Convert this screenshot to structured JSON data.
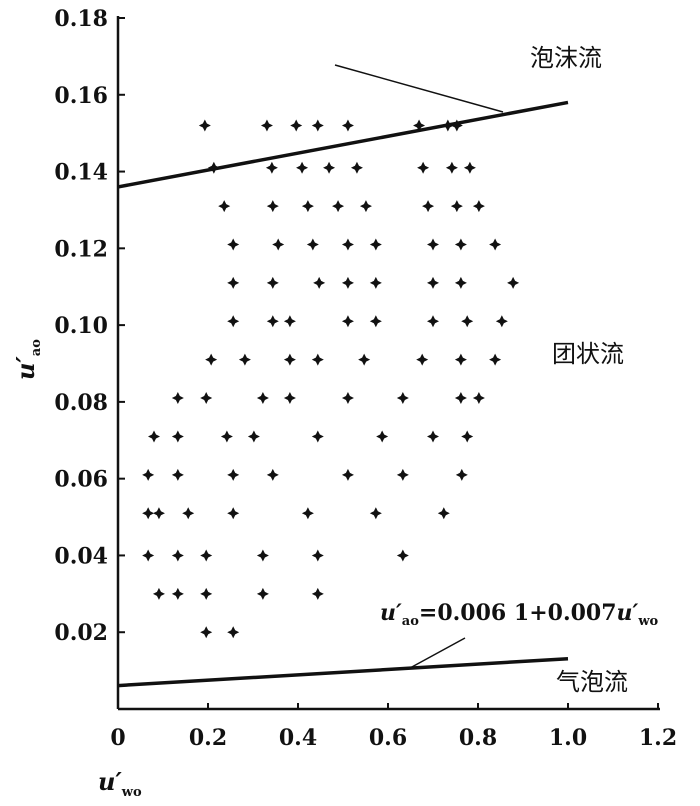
{
  "chart_data": {
    "type": "scatter",
    "xlabel": {
      "main": "u′",
      "sub": "wo"
    },
    "ylabel": {
      "main": "u′",
      "sub": "ao"
    },
    "xlim": [
      0,
      1.2
    ],
    "ylim": [
      0,
      0.18
    ],
    "xticks": [
      "0",
      "0.2",
      "0.4",
      "0.6",
      "0.8",
      "1.0",
      "1.2"
    ],
    "yticks": [
      "0.02",
      "0.04",
      "0.06",
      "0.08",
      "0.10",
      "0.12",
      "0.14",
      "0.16",
      "0.18"
    ],
    "grid": false,
    "marker_color": "#111111",
    "points": [
      [
        0.193,
        0.152
      ],
      [
        0.331,
        0.152
      ],
      [
        0.396,
        0.152
      ],
      [
        0.444,
        0.152
      ],
      [
        0.511,
        0.152
      ],
      [
        0.669,
        0.152
      ],
      [
        0.733,
        0.152
      ],
      [
        0.753,
        0.152
      ],
      [
        0.213,
        0.141
      ],
      [
        0.342,
        0.141
      ],
      [
        0.409,
        0.141
      ],
      [
        0.469,
        0.141
      ],
      [
        0.531,
        0.141
      ],
      [
        0.678,
        0.141
      ],
      [
        0.742,
        0.141
      ],
      [
        0.782,
        0.141
      ],
      [
        0.236,
        0.131
      ],
      [
        0.344,
        0.131
      ],
      [
        0.422,
        0.131
      ],
      [
        0.489,
        0.131
      ],
      [
        0.551,
        0.131
      ],
      [
        0.689,
        0.131
      ],
      [
        0.753,
        0.131
      ],
      [
        0.802,
        0.131
      ],
      [
        0.256,
        0.121
      ],
      [
        0.356,
        0.121
      ],
      [
        0.433,
        0.121
      ],
      [
        0.511,
        0.121
      ],
      [
        0.573,
        0.121
      ],
      [
        0.7,
        0.121
      ],
      [
        0.762,
        0.121
      ],
      [
        0.838,
        0.121
      ],
      [
        0.256,
        0.111
      ],
      [
        0.344,
        0.111
      ],
      [
        0.447,
        0.111
      ],
      [
        0.511,
        0.111
      ],
      [
        0.573,
        0.111
      ],
      [
        0.7,
        0.111
      ],
      [
        0.762,
        0.111
      ],
      [
        0.878,
        0.111
      ],
      [
        0.256,
        0.101
      ],
      [
        0.344,
        0.101
      ],
      [
        0.382,
        0.101
      ],
      [
        0.511,
        0.101
      ],
      [
        0.573,
        0.101
      ],
      [
        0.7,
        0.101
      ],
      [
        0.776,
        0.101
      ],
      [
        0.853,
        0.101
      ],
      [
        0.207,
        0.091
      ],
      [
        0.282,
        0.091
      ],
      [
        0.382,
        0.091
      ],
      [
        0.444,
        0.091
      ],
      [
        0.547,
        0.091
      ],
      [
        0.676,
        0.091
      ],
      [
        0.762,
        0.091
      ],
      [
        0.838,
        0.091
      ],
      [
        0.133,
        0.081
      ],
      [
        0.196,
        0.081
      ],
      [
        0.322,
        0.081
      ],
      [
        0.382,
        0.081
      ],
      [
        0.511,
        0.081
      ],
      [
        0.633,
        0.081
      ],
      [
        0.762,
        0.081
      ],
      [
        0.802,
        0.081
      ],
      [
        0.08,
        0.071
      ],
      [
        0.133,
        0.071
      ],
      [
        0.242,
        0.071
      ],
      [
        0.302,
        0.071
      ],
      [
        0.444,
        0.071
      ],
      [
        0.587,
        0.071
      ],
      [
        0.7,
        0.071
      ],
      [
        0.776,
        0.071
      ],
      [
        0.067,
        0.061
      ],
      [
        0.133,
        0.061
      ],
      [
        0.256,
        0.061
      ],
      [
        0.344,
        0.061
      ],
      [
        0.511,
        0.061
      ],
      [
        0.633,
        0.061
      ],
      [
        0.764,
        0.061
      ],
      [
        0.067,
        0.051
      ],
      [
        0.091,
        0.051
      ],
      [
        0.156,
        0.051
      ],
      [
        0.256,
        0.051
      ],
      [
        0.422,
        0.051
      ],
      [
        0.573,
        0.051
      ],
      [
        0.724,
        0.051
      ],
      [
        0.067,
        0.04
      ],
      [
        0.133,
        0.04
      ],
      [
        0.196,
        0.04
      ],
      [
        0.322,
        0.04
      ],
      [
        0.444,
        0.04
      ],
      [
        0.633,
        0.04
      ],
      [
        0.091,
        0.03
      ],
      [
        0.133,
        0.03
      ],
      [
        0.196,
        0.03
      ],
      [
        0.322,
        0.03
      ],
      [
        0.444,
        0.03
      ],
      [
        0.196,
        0.02
      ],
      [
        0.256,
        0.02
      ]
    ],
    "lines": [
      {
        "x": [
          0,
          1.0
        ],
        "y": [
          0.136,
          0.158
        ]
      },
      {
        "x": [
          0,
          1.0
        ],
        "y": [
          0.0061,
          0.0131
        ]
      }
    ],
    "annotations": {
      "foam": "泡沫流",
      "slug": "团状流",
      "bubble": "气泡流",
      "equation": {
        "u1": "u′",
        "s1": "ao",
        "mid": "=0.006 1+0.007",
        "u2": "u′",
        "s2": "wo"
      }
    }
  }
}
